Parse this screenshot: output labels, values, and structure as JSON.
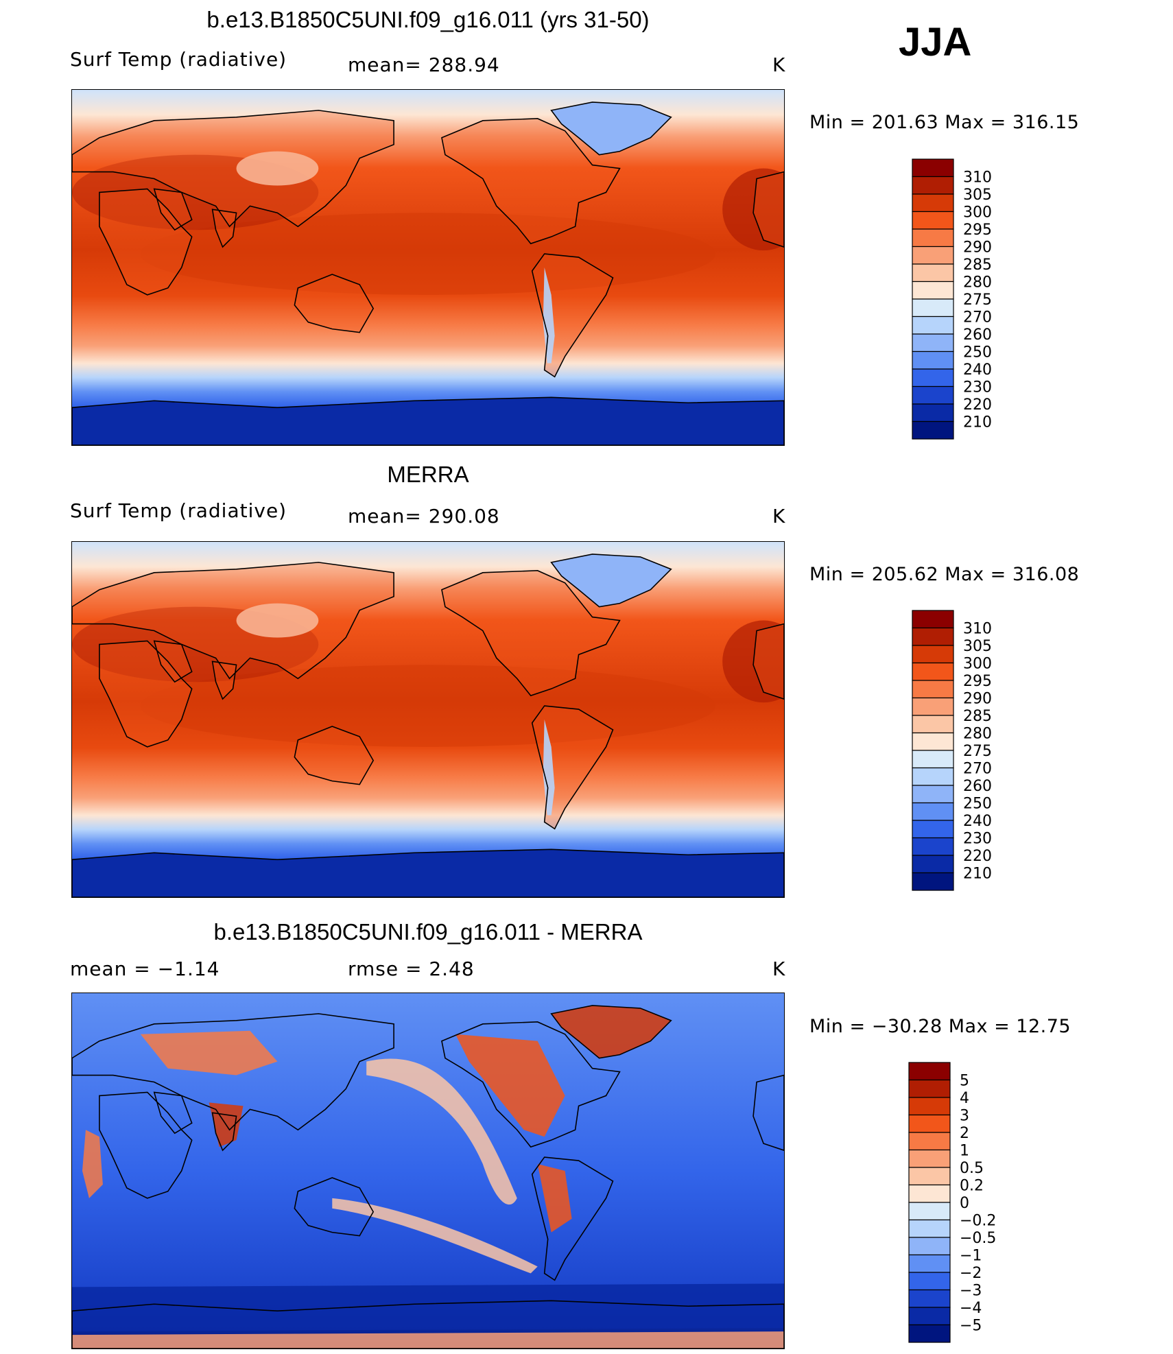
{
  "season": "JJA",
  "panels": [
    {
      "id": "model",
      "title": "b.e13.B1850C5UNI.f09_g16.011 (yrs 31-50)",
      "left_label": "Surf Temp (radiative)",
      "center_label": "mean= 288.94",
      "units": "K",
      "minmax": "Min = 201.63 Max = 316.15",
      "colorbar": {
        "labels": [
          "310",
          "305",
          "300",
          "295",
          "290",
          "285",
          "280",
          "275",
          "270",
          "260",
          "250",
          "240",
          "230",
          "220",
          "210"
        ],
        "colors": [
          "#8b0000",
          "#b01e03",
          "#d63a07",
          "#f2561a",
          "#f77a45",
          "#f9a077",
          "#fbc6a6",
          "#fde6d4",
          "#d8eaf9",
          "#b6d4fb",
          "#8fb4f8",
          "#6090f4",
          "#3365ea",
          "#1b44cc",
          "#0a2aa6",
          "#00157f"
        ]
      },
      "map_style": "model"
    },
    {
      "id": "obs",
      "title": "MERRA",
      "left_label": "Surf Temp (radiative)",
      "center_label": "mean= 290.08",
      "units": "K",
      "minmax": "Min = 205.62 Max = 316.08",
      "colorbar": {
        "labels": [
          "310",
          "305",
          "300",
          "295",
          "290",
          "285",
          "280",
          "275",
          "270",
          "260",
          "250",
          "240",
          "230",
          "220",
          "210"
        ],
        "colors": [
          "#8b0000",
          "#b01e03",
          "#d63a07",
          "#f2561a",
          "#f77a45",
          "#f9a077",
          "#fbc6a6",
          "#fde6d4",
          "#d8eaf9",
          "#b6d4fb",
          "#8fb4f8",
          "#6090f4",
          "#3365ea",
          "#1b44cc",
          "#0a2aa6",
          "#00157f"
        ]
      },
      "map_style": "obs"
    },
    {
      "id": "diff",
      "title": "b.e13.B1850C5UNI.f09_g16.011 - MERRA",
      "left_label": "mean = −1.14",
      "center_label": "rmse = 2.48",
      "units": "K",
      "minmax": "Min = −30.28 Max = 12.75",
      "colorbar": {
        "labels": [
          "5",
          "4",
          "3",
          "2",
          "1",
          "0.5",
          "0.2",
          "0",
          "−0.2",
          "−0.5",
          "−1",
          "−2",
          "−3",
          "−4",
          "−5"
        ],
        "colors": [
          "#8b0000",
          "#b01e03",
          "#d63a07",
          "#f2561a",
          "#f77a45",
          "#f9a077",
          "#fbc6a6",
          "#fde6d4",
          "#d8eaf9",
          "#b6d4fb",
          "#8fb4f8",
          "#6090f4",
          "#3365ea",
          "#1b44cc",
          "#0a2aa6",
          "#00157f"
        ]
      },
      "map_style": "diff"
    }
  ]
}
